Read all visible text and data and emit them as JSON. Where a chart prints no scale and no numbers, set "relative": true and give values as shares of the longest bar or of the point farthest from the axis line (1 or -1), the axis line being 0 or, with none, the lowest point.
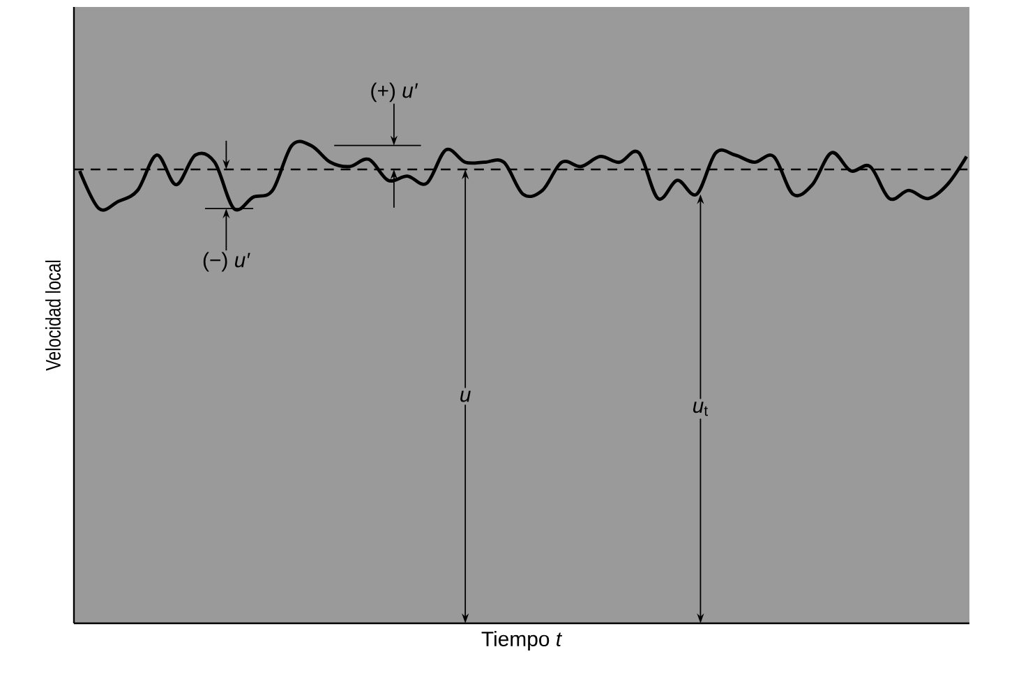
{
  "chart_data": {
    "type": "line",
    "relative": true,
    "xlabel": "Tiempo *t*",
    "ylabel": "Velocidad local",
    "marker": "none",
    "categories": [
      null,
      null,
      null,
      null,
      null,
      null,
      null,
      null,
      null,
      null,
      null,
      null,
      null,
      null,
      null,
      null,
      null,
      null,
      null,
      null,
      null,
      null,
      null,
      null,
      null,
      null,
      null,
      null,
      null,
      null,
      null,
      null,
      null,
      null,
      null,
      null,
      null,
      null,
      null,
      null,
      null,
      null,
      null,
      null,
      null,
      null,
      null
    ],
    "series": [
      {
        "color": "#000000",
        "values": [
          0.947,
          0.868,
          0.883,
          0.906,
          0.98,
          0.918,
          0.98,
          0.965,
          0.868,
          0.892,
          0.906,
          1.0,
          1.0,
          0.965,
          0.956,
          0.971,
          0.927,
          0.936,
          0.921,
          0.991,
          0.965,
          0.965,
          0.965,
          0.898,
          0.906,
          0.965,
          0.956,
          0.977,
          0.965,
          0.985,
          0.889,
          0.927,
          0.898,
          0.985,
          0.98,
          0.965,
          0.977,
          0.898,
          0.918,
          0.985,
          0.947,
          0.956,
          0.889,
          0.906,
          0.889,
          0.918,
          0.977
        ]
      }
    ],
    "ref_lines": [
      {
        "axis": "y",
        "value": 0.95,
        "line_style": "dashed",
        "color": "#000000"
      }
    ],
    "annotations": [
      "(+) *u′*",
      "(−) *u′*",
      "*u*",
      "*u*$_{t}$"
    ]
  }
}
